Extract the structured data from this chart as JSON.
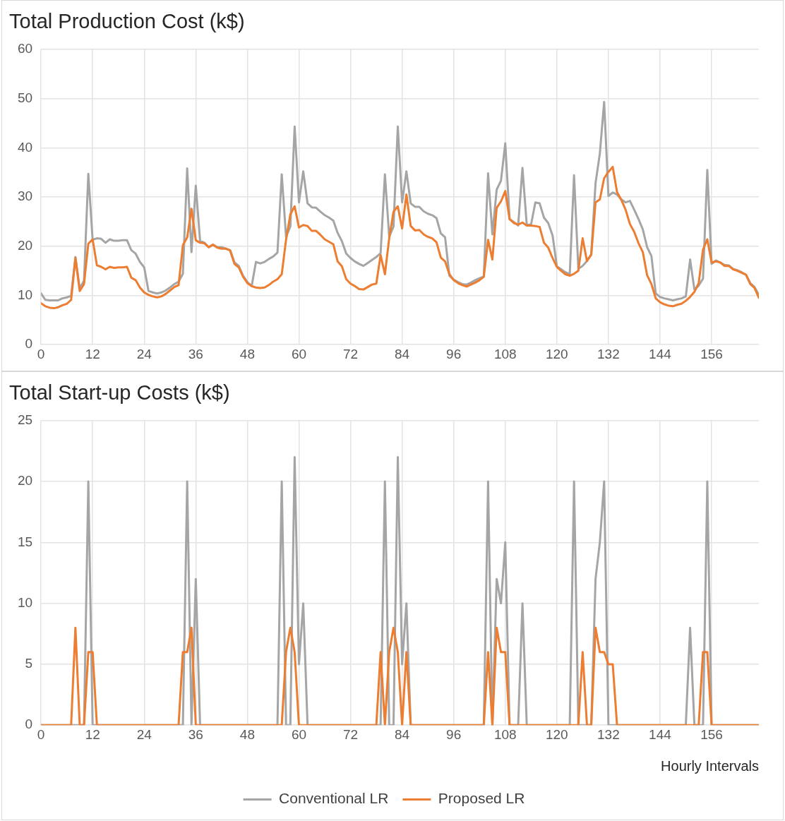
{
  "chart_data": [
    {
      "type": "line",
      "title": "Total Production Cost (k$)",
      "x": [
        0,
        1,
        2,
        3,
        4,
        5,
        6,
        7,
        8,
        9,
        10,
        11,
        12,
        13,
        14,
        15,
        16,
        17,
        18,
        19,
        20,
        21,
        22,
        23,
        24,
        25,
        26,
        27,
        28,
        29,
        30,
        31,
        32,
        33,
        34,
        35,
        36,
        37,
        38,
        39,
        40,
        41,
        42,
        43,
        44,
        45,
        46,
        47,
        48,
        49,
        50,
        51,
        52,
        53,
        54,
        55,
        56,
        57,
        58,
        59,
        60,
        61,
        62,
        63,
        64,
        65,
        66,
        67,
        68,
        69,
        70,
        71,
        72,
        73,
        74,
        75,
        76,
        77,
        78,
        79,
        80,
        81,
        82,
        83,
        84,
        85,
        86,
        87,
        88,
        89,
        90,
        91,
        92,
        93,
        94,
        95,
        96,
        97,
        98,
        99,
        100,
        101,
        102,
        103,
        104,
        105,
        106,
        107,
        108,
        109,
        110,
        111,
        112,
        113,
        114,
        115,
        116,
        117,
        118,
        119,
        120,
        121,
        122,
        123,
        124,
        125,
        126,
        127,
        128,
        129,
        130,
        131,
        132,
        133,
        134,
        135,
        136,
        137,
        138,
        139,
        140,
        141,
        142,
        143,
        144,
        145,
        146,
        147,
        148,
        149,
        150,
        151,
        152,
        153,
        154,
        155,
        156,
        157,
        158,
        159,
        160,
        161,
        162,
        163,
        164,
        165,
        166,
        167
      ],
      "series": [
        {
          "color": "#a5a5a5",
          "values": [
            10.4,
            9.1,
            9.0,
            9.0,
            9.0,
            9.4,
            9.6,
            9.9,
            17.8,
            11.4,
            13,
            34.7,
            21.3,
            21.6,
            21.5,
            20.7,
            21.4,
            21.1,
            21.1,
            21.2,
            21.2,
            19.2,
            18.5,
            16.8,
            15.7,
            10.9,
            10.6,
            10.4,
            10.6,
            11,
            11.6,
            12.3,
            12.8,
            14.4,
            35.8,
            18.8,
            32.3,
            21.1,
            20.7,
            19.8,
            20.3,
            19.8,
            19.8,
            19.5,
            19.2,
            16.7,
            16,
            14,
            12.7,
            11.9,
            16.8,
            16.5,
            16.8,
            17.4,
            17.9,
            18.7,
            34.6,
            21.9,
            24,
            44.3,
            28.9,
            35.2,
            28.7,
            27.9,
            27.8,
            27,
            26.3,
            25.8,
            25.2,
            22.7,
            21,
            18.5,
            17.6,
            16.9,
            16.4,
            16,
            16.6,
            17.2,
            17.8,
            18.6,
            34.6,
            21.9,
            24,
            44.3,
            28.9,
            35.2,
            28.7,
            28,
            28,
            27.1,
            26.6,
            26.3,
            25.7,
            22.6,
            21.8,
            14,
            13.2,
            12.7,
            12.3,
            12.2,
            12.6,
            13.1,
            13.5,
            13.8,
            34.8,
            22.4,
            31.5,
            33.3,
            40.9,
            25.5,
            24.9,
            24.2,
            35.9,
            24.3,
            24.4,
            28.9,
            28.7,
            25.8,
            24.7,
            22.2,
            15.9,
            15.3,
            14.7,
            14.3,
            34.4,
            15.4,
            16,
            17,
            18.3,
            32.8,
            38.8,
            49.3,
            30.2,
            30.9,
            30.5,
            29.5,
            28.9,
            29.2,
            27.4,
            25.5,
            23.4,
            19.8,
            18,
            10.4,
            9.7,
            9.4,
            9.2,
            9,
            9.2,
            9.4,
            9.8,
            17.3,
            11.2,
            12,
            13.4,
            35.5,
            16.4,
            17.1,
            16.7,
            16.2,
            16.1,
            15.4,
            15.1,
            14.7,
            14.2,
            12.5,
            11.7,
            10.1
          ]
        },
        {
          "color": "#ed7d31",
          "values": [
            8.4,
            7.8,
            7.5,
            7.4,
            7.6,
            8,
            8.3,
            9.1,
            17.6,
            10.9,
            12.3,
            20.5,
            21.4,
            16.1,
            15.8,
            15.3,
            15.8,
            15.6,
            15.7,
            15.7,
            15.8,
            13.6,
            13.1,
            11.6,
            10.6,
            10.1,
            9.8,
            9.6,
            9.8,
            10.3,
            11,
            11.7,
            12.1,
            20.2,
            21.8,
            27.6,
            21.2,
            20.7,
            20.6,
            19.8,
            20.3,
            19.7,
            19.5,
            19.5,
            19.1,
            16.4,
            15.7,
            13.8,
            12.5,
            11.9,
            11.6,
            11.5,
            11.6,
            12.1,
            12.8,
            13.3,
            14.3,
            21.3,
            26.5,
            28.1,
            23.8,
            24.3,
            24.1,
            23.1,
            23.1,
            22.3,
            21.4,
            20.9,
            20.4,
            16.9,
            15.9,
            13.3,
            12.4,
            11.9,
            11.3,
            11.2,
            11.7,
            12.2,
            12.4,
            18.2,
            14.3,
            21.6,
            27,
            28.1,
            23.6,
            30.5,
            24.1,
            23.2,
            23.3,
            22.4,
            21.9,
            21.6,
            20.8,
            17.7,
            16.9,
            14.3,
            13.1,
            12.5,
            12.1,
            11.8,
            12.2,
            12.6,
            13.1,
            13.8,
            21.3,
            17.3,
            27.8,
            29.1,
            31.2,
            25.5,
            24.7,
            24.4,
            24.8,
            24.2,
            24.2,
            24.1,
            23.9,
            20.7,
            19.7,
            17.6,
            15.8,
            15,
            14.3,
            14,
            14.4,
            15,
            21.6,
            17,
            18.3,
            28.9,
            29.5,
            33.8,
            35.1,
            36.1,
            31,
            29.4,
            27.4,
            24.5,
            22.9,
            20.6,
            18.8,
            14.1,
            12.3,
            9.4,
            8.6,
            8.2,
            7.9,
            7.8,
            8.1,
            8.3,
            8.9,
            9.7,
            10.7,
            12.5,
            19.3,
            21.4,
            16.7,
            16.9,
            16.7,
            16,
            16,
            15.3,
            15,
            14.6,
            14.2,
            12.3,
            11.5,
            9.5
          ]
        }
      ],
      "xlim": [
        0,
        167
      ],
      "xticks": [
        0,
        12,
        24,
        36,
        48,
        60,
        72,
        84,
        96,
        108,
        120,
        132,
        144,
        156
      ],
      "ylim": [
        0,
        60
      ],
      "yticks": [
        0,
        10,
        20,
        30,
        40,
        50,
        60
      ],
      "grid": true,
      "marker": "none",
      "line_style": "solid"
    },
    {
      "type": "line",
      "title": "Total Start-up Costs (k$)",
      "xlabel": "Hourly Intervals",
      "series": [
        {
          "name": "Conventional LR",
          "color": "#a5a5a5",
          "x": [
            0,
            10,
            11,
            12,
            33,
            34,
            35,
            36,
            37,
            55,
            56,
            57,
            58,
            59,
            60,
            61,
            62,
            79,
            80,
            81,
            82,
            83,
            84,
            85,
            86,
            103,
            104,
            105,
            106,
            107,
            108,
            109,
            111,
            112,
            113,
            123,
            124,
            125,
            128,
            129,
            130,
            131,
            132,
            150,
            151,
            152,
            154,
            155,
            156,
            167
          ],
          "values": [
            0,
            0,
            20,
            0,
            0,
            20,
            0,
            12,
            0,
            0,
            20,
            0,
            0,
            22,
            5,
            10,
            0,
            0,
            20,
            0,
            0,
            22,
            5,
            10,
            0,
            0,
            20,
            0,
            12,
            10,
            15,
            0,
            0,
            10,
            0,
            0,
            20,
            0,
            0,
            12,
            15,
            20,
            0,
            0,
            8,
            0,
            0,
            20,
            0,
            0
          ]
        },
        {
          "name": "Proposed LR",
          "color": "#ed7d31",
          "x": [
            0,
            7,
            8,
            9,
            10,
            11,
            12,
            13,
            32,
            33,
            34,
            35,
            36,
            56,
            57,
            58,
            59,
            60,
            78,
            79,
            80,
            81,
            82,
            83,
            84,
            85,
            86,
            103,
            104,
            105,
            106,
            107,
            108,
            109,
            125,
            126,
            127,
            128,
            129,
            130,
            131,
            132,
            133,
            134,
            153,
            154,
            155,
            156,
            167
          ],
          "values": [
            0,
            0,
            8,
            0,
            0,
            6,
            6,
            0,
            0,
            6,
            6,
            8,
            0,
            0,
            6,
            8,
            6,
            0,
            0,
            6,
            0,
            6,
            8,
            6,
            0,
            6,
            0,
            0,
            6,
            0,
            8,
            6,
            6,
            0,
            0,
            6,
            0,
            0,
            8,
            6,
            6,
            5,
            5,
            0,
            0,
            6,
            6,
            0,
            0
          ]
        }
      ],
      "xlim": [
        0,
        167
      ],
      "xticks": [
        0,
        12,
        24,
        36,
        48,
        60,
        72,
        84,
        96,
        108,
        120,
        132,
        144,
        156
      ],
      "ylim": [
        0,
        25
      ],
      "yticks": [
        0,
        5,
        10,
        15,
        20,
        25
      ],
      "grid": true,
      "legend": "bottom",
      "marker": "none",
      "line_style": "solid"
    }
  ]
}
